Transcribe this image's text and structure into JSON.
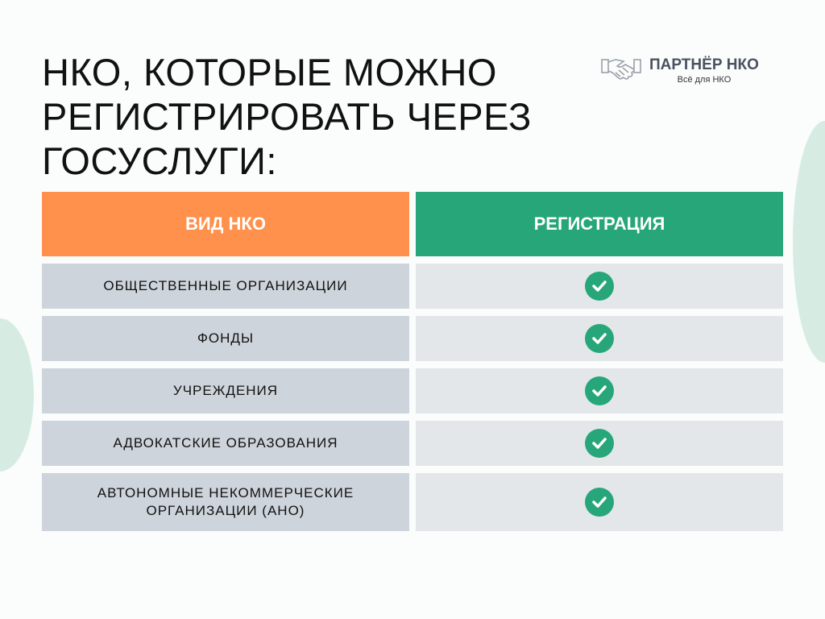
{
  "title": "НКО, КОТОРЫЕ МОЖНО РЕГИСТРИРОВАТЬ ЧЕРЕЗ ГОСУСЛУГИ:",
  "logo": {
    "name": "ПАРТНЁР НКО",
    "tagline": "Всё для НКО",
    "icon": "handshake-icon"
  },
  "table": {
    "headers": [
      "ВИД НКО",
      "РЕГИСТРАЦИЯ"
    ],
    "rows": [
      {
        "type": "ОБЩЕСТВЕННЫЕ ОРГАНИЗАЦИИ",
        "registration": true
      },
      {
        "type": "ФОНДЫ",
        "registration": true
      },
      {
        "type": "УЧРЕЖДЕНИЯ",
        "registration": true
      },
      {
        "type": "АДВОКАТСКИЕ ОБРАЗОВАНИЯ",
        "registration": true
      },
      {
        "type": "АВТОНОМНЫЕ НЕКОММЕРЧЕСКИЕ ОРГАНИЗАЦИИ (АНО)",
        "registration": true
      }
    ]
  },
  "colors": {
    "header_left": "#ff914d",
    "header_right": "#27a67a",
    "check": "#27a67a",
    "accent_bg": "#d6ece3"
  }
}
